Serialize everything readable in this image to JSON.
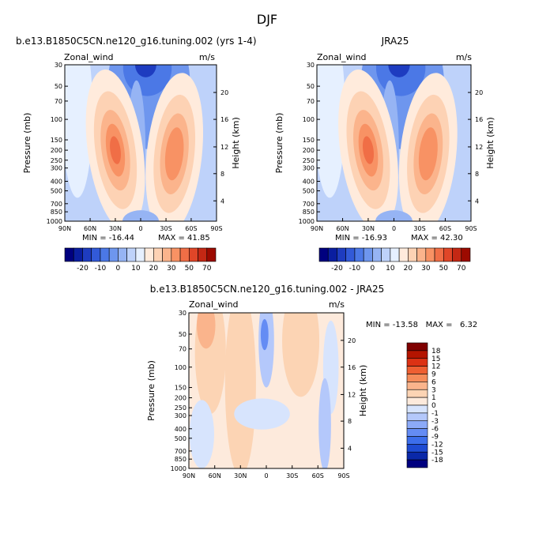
{
  "figure_title": "DJF",
  "colors": {
    "panel_scale": [
      "#00007f",
      "#0a1ea0",
      "#1e3cc0",
      "#325ad8",
      "#4b78e6",
      "#6e96ee",
      "#96b4f4",
      "#bed2fa",
      "#e6f0ff",
      "#ffebdc",
      "#fdd2b4",
      "#fbb48c",
      "#f89264",
      "#f06e46",
      "#e04628",
      "#c42814",
      "#9c0a00"
    ],
    "diff_scale": [
      "#00007f",
      "#0a28a8",
      "#1e4bd2",
      "#3c6eeb",
      "#648cf4",
      "#8caaf8",
      "#b4c8fb",
      "#d7e4fd",
      "#fdeadc",
      "#fcd4b4",
      "#fab48c",
      "#f58c5a",
      "#ee5f32",
      "#dc3214",
      "#b41400",
      "#7f0000"
    ]
  },
  "chart_data": [
    {
      "type": "heatmap",
      "panel": "model",
      "title": "b.e13.B1850C5CN.ne120_g16.tuning.002 (yrs 1-4)",
      "variable": "Zonal_wind",
      "units": "m/s",
      "ylabel": "Pressure (mb)",
      "ylabel_right": "Height (km)",
      "x_ticks": [
        "90N",
        "60N",
        "30N",
        "0",
        "30S",
        "60S",
        "90S"
      ],
      "y_ticks": [
        "30",
        "50",
        "70",
        "100",
        "150",
        "200",
        "250",
        "300",
        "400",
        "500",
        "700",
        "850",
        "1000"
      ],
      "y_ticks_right": [
        "20",
        "16",
        "12",
        "8",
        "4"
      ],
      "jets": [
        {
          "lat": 30,
          "pressure": 200,
          "max": 41.85
        },
        {
          "lat": -40,
          "pressure": 225,
          "max": 35
        }
      ],
      "min": "-16.44",
      "max": "41.85",
      "min_label": "MIN = -16.44",
      "max_label": "MAX =  41.85"
    },
    {
      "type": "heatmap",
      "panel": "obs",
      "title": "JRA25",
      "variable": "Zonal_wind",
      "units": "m/s",
      "ylabel": "Pressure (mb)",
      "ylabel_right": "Height (km)",
      "x_ticks": [
        "90N",
        "60N",
        "30N",
        "0",
        "30S",
        "60S",
        "90S"
      ],
      "y_ticks": [
        "30",
        "50",
        "70",
        "100",
        "150",
        "200",
        "250",
        "300",
        "400",
        "500",
        "700",
        "850",
        "1000"
      ],
      "y_ticks_right": [
        "20",
        "16",
        "12",
        "8",
        "4"
      ],
      "jets": [
        {
          "lat": 30,
          "pressure": 200,
          "max": 42.3
        },
        {
          "lat": -40,
          "pressure": 225,
          "max": 34
        }
      ],
      "min": "-16.93",
      "max": "42.30",
      "min_label": "MIN = -16.93",
      "max_label": "MAX =  42.30"
    },
    {
      "type": "heatmap",
      "panel": "difference",
      "title": "b.e13.B1850C5CN.ne120_g16.tuning.002 - JRA25",
      "variable": "Zonal_wind",
      "units": "m/s",
      "ylabel": "Pressure (mb)",
      "ylabel_right": "Height (km)",
      "x_ticks": [
        "90N",
        "60N",
        "30N",
        "0",
        "30S",
        "60S",
        "90S"
      ],
      "y_ticks": [
        "30",
        "50",
        "70",
        "100",
        "150",
        "200",
        "250",
        "300",
        "400",
        "500",
        "700",
        "850",
        "1000"
      ],
      "y_ticks_right": [
        "20",
        "16",
        "12",
        "8",
        "4"
      ],
      "min": "-13.58",
      "max": "6.32",
      "stats_label": "MIN = -13.58   MAX =   6.32"
    }
  ],
  "colorbar_panels": {
    "labels": [
      "-20",
      "-10",
      "0",
      "10",
      "20",
      "30",
      "50",
      "70"
    ]
  },
  "colorbar_diff": {
    "labels": [
      "18",
      "15",
      "12",
      "9",
      "6",
      "3",
      "1",
      "0",
      "-1",
      "-3",
      "-6",
      "-9",
      "-12",
      "-15",
      "-18"
    ]
  }
}
